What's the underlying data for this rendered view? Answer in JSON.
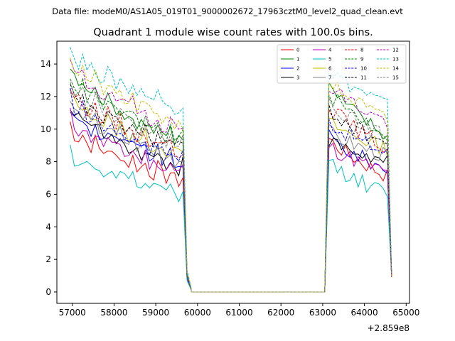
{
  "header": {
    "data_file": "Data file: modeM0/AS1A05_019T01_9000002672_17963cztM0_level2_quad_clean.evt"
  },
  "chart_data": {
    "type": "line",
    "title": "Quadrant 1 module wise count rates with 100.0s bins.",
    "xlabel": "",
    "ylabel": "",
    "x_offset_label": "+2.859e8",
    "xlim": [
      56630,
      65080
    ],
    "ylim": [
      -0.7,
      15.4
    ],
    "xticks": [
      57000,
      58000,
      59000,
      60000,
      61000,
      62000,
      63000,
      64000,
      65000
    ],
    "xtick_labels": [
      "57000",
      "58000",
      "59000",
      "60000",
      "61000",
      "62000",
      "63000",
      "64000",
      "65000"
    ],
    "yticks": [
      0,
      2,
      4,
      6,
      8,
      10,
      12,
      14
    ],
    "ytick_labels": [
      "0",
      "2",
      "4",
      "6",
      "8",
      "10",
      "12",
      "14"
    ],
    "legend_position": "top-right",
    "x_start": 56950,
    "bin": 100,
    "n_seg1": 28,
    "seg2_start": 63150,
    "n_seg2": 15,
    "gap_x": [
      59850,
      63050
    ],
    "transition": [
      0.12,
      0.02
    ],
    "end_value": 1.0,
    "series": [
      {
        "name": "0",
        "color": "#ff0000",
        "dash": "solid",
        "start": 10.1,
        "seg1_end": 6.8,
        "peak2": 9.4,
        "end2": 7.1
      },
      {
        "name": "1",
        "color": "#008000",
        "dash": "solid",
        "start": 13.5,
        "seg1_end": 9.3,
        "peak2": 12.6,
        "end2": 9.5
      },
      {
        "name": "2",
        "color": "#0000ff",
        "dash": "solid",
        "start": 11.0,
        "seg1_end": 7.8,
        "peak2": 9.5,
        "end2": 7.5
      },
      {
        "name": "3",
        "color": "#000000",
        "dash": "solid",
        "start": 11.3,
        "seg1_end": 7.6,
        "peak2": 9.3,
        "end2": 7.9
      },
      {
        "name": "4",
        "color": "#bf00bf",
        "dash": "solid",
        "start": 10.6,
        "seg1_end": 7.3,
        "peak2": 9.0,
        "end2": 7.3
      },
      {
        "name": "5",
        "color": "#00bfbf",
        "dash": "solid",
        "start": 8.5,
        "seg1_end": 5.8,
        "peak2": 8.0,
        "end2": 6.0
      },
      {
        "name": "6",
        "color": "#bfbf00",
        "dash": "solid",
        "start": 12.0,
        "seg1_end": 8.4,
        "peak2": 10.4,
        "end2": 8.8
      },
      {
        "name": "7",
        "color": "#808080",
        "dash": "solid",
        "start": 11.5,
        "seg1_end": 8.0,
        "peak2": 9.8,
        "end2": 8.3
      },
      {
        "name": "8",
        "color": "#ff0000",
        "dash": "dashed",
        "start": 12.4,
        "seg1_end": 8.6,
        "peak2": 11.5,
        "end2": 8.8
      },
      {
        "name": "9",
        "color": "#008000",
        "dash": "dashed",
        "start": 13.2,
        "seg1_end": 9.3,
        "peak2": 12.2,
        "end2": 9.7
      },
      {
        "name": "10",
        "color": "#0000ff",
        "dash": "dashed",
        "start": 11.8,
        "seg1_end": 8.2,
        "peak2": 10.5,
        "end2": 8.5
      },
      {
        "name": "11",
        "color": "#000000",
        "dash": "dashed",
        "start": 12.2,
        "seg1_end": 8.8,
        "peak2": 11.2,
        "end2": 9.1
      },
      {
        "name": "12",
        "color": "#bf00bf",
        "dash": "dashed",
        "start": 13.9,
        "seg1_end": 9.9,
        "peak2": 12.8,
        "end2": 10.4
      },
      {
        "name": "13",
        "color": "#00bfbf",
        "dash": "dashed",
        "start": 14.8,
        "seg1_end": 11.3,
        "peak2": 13.7,
        "end2": 11.5
      },
      {
        "name": "14",
        "color": "#bfbf00",
        "dash": "dashed",
        "start": 14.3,
        "seg1_end": 10.2,
        "peak2": 13.0,
        "end2": 10.5
      },
      {
        "name": "15",
        "color": "#808080",
        "dash": "dashed",
        "start": 13.0,
        "seg1_end": 9.0,
        "peak2": 11.8,
        "end2": 9.4
      }
    ]
  }
}
